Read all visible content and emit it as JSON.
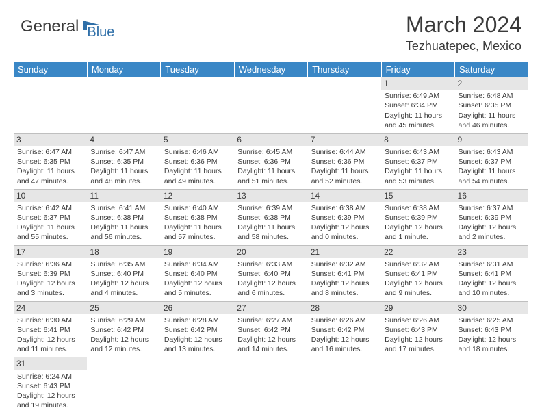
{
  "logo": {
    "general": "General",
    "blue": "Blue"
  },
  "title": "March 2024",
  "location": "Tezhuatepec, Mexico",
  "header_bg": "#3a87c6",
  "daynum_bg": "#e6e6e6",
  "text_color": "#3a3a3a",
  "day_names": [
    "Sunday",
    "Monday",
    "Tuesday",
    "Wednesday",
    "Thursday",
    "Friday",
    "Saturday"
  ],
  "weeks": [
    [
      null,
      null,
      null,
      null,
      null,
      {
        "n": "1",
        "sr": "Sunrise: 6:49 AM",
        "ss": "Sunset: 6:34 PM",
        "d1": "Daylight: 11 hours",
        "d2": "and 45 minutes."
      },
      {
        "n": "2",
        "sr": "Sunrise: 6:48 AM",
        "ss": "Sunset: 6:35 PM",
        "d1": "Daylight: 11 hours",
        "d2": "and 46 minutes."
      }
    ],
    [
      {
        "n": "3",
        "sr": "Sunrise: 6:47 AM",
        "ss": "Sunset: 6:35 PM",
        "d1": "Daylight: 11 hours",
        "d2": "and 47 minutes."
      },
      {
        "n": "4",
        "sr": "Sunrise: 6:47 AM",
        "ss": "Sunset: 6:35 PM",
        "d1": "Daylight: 11 hours",
        "d2": "and 48 minutes."
      },
      {
        "n": "5",
        "sr": "Sunrise: 6:46 AM",
        "ss": "Sunset: 6:36 PM",
        "d1": "Daylight: 11 hours",
        "d2": "and 49 minutes."
      },
      {
        "n": "6",
        "sr": "Sunrise: 6:45 AM",
        "ss": "Sunset: 6:36 PM",
        "d1": "Daylight: 11 hours",
        "d2": "and 51 minutes."
      },
      {
        "n": "7",
        "sr": "Sunrise: 6:44 AM",
        "ss": "Sunset: 6:36 PM",
        "d1": "Daylight: 11 hours",
        "d2": "and 52 minutes."
      },
      {
        "n": "8",
        "sr": "Sunrise: 6:43 AM",
        "ss": "Sunset: 6:37 PM",
        "d1": "Daylight: 11 hours",
        "d2": "and 53 minutes."
      },
      {
        "n": "9",
        "sr": "Sunrise: 6:43 AM",
        "ss": "Sunset: 6:37 PM",
        "d1": "Daylight: 11 hours",
        "d2": "and 54 minutes."
      }
    ],
    [
      {
        "n": "10",
        "sr": "Sunrise: 6:42 AM",
        "ss": "Sunset: 6:37 PM",
        "d1": "Daylight: 11 hours",
        "d2": "and 55 minutes."
      },
      {
        "n": "11",
        "sr": "Sunrise: 6:41 AM",
        "ss": "Sunset: 6:38 PM",
        "d1": "Daylight: 11 hours",
        "d2": "and 56 minutes."
      },
      {
        "n": "12",
        "sr": "Sunrise: 6:40 AM",
        "ss": "Sunset: 6:38 PM",
        "d1": "Daylight: 11 hours",
        "d2": "and 57 minutes."
      },
      {
        "n": "13",
        "sr": "Sunrise: 6:39 AM",
        "ss": "Sunset: 6:38 PM",
        "d1": "Daylight: 11 hours",
        "d2": "and 58 minutes."
      },
      {
        "n": "14",
        "sr": "Sunrise: 6:38 AM",
        "ss": "Sunset: 6:39 PM",
        "d1": "Daylight: 12 hours",
        "d2": "and 0 minutes."
      },
      {
        "n": "15",
        "sr": "Sunrise: 6:38 AM",
        "ss": "Sunset: 6:39 PM",
        "d1": "Daylight: 12 hours",
        "d2": "and 1 minute."
      },
      {
        "n": "16",
        "sr": "Sunrise: 6:37 AM",
        "ss": "Sunset: 6:39 PM",
        "d1": "Daylight: 12 hours",
        "d2": "and 2 minutes."
      }
    ],
    [
      {
        "n": "17",
        "sr": "Sunrise: 6:36 AM",
        "ss": "Sunset: 6:39 PM",
        "d1": "Daylight: 12 hours",
        "d2": "and 3 minutes."
      },
      {
        "n": "18",
        "sr": "Sunrise: 6:35 AM",
        "ss": "Sunset: 6:40 PM",
        "d1": "Daylight: 12 hours",
        "d2": "and 4 minutes."
      },
      {
        "n": "19",
        "sr": "Sunrise: 6:34 AM",
        "ss": "Sunset: 6:40 PM",
        "d1": "Daylight: 12 hours",
        "d2": "and 5 minutes."
      },
      {
        "n": "20",
        "sr": "Sunrise: 6:33 AM",
        "ss": "Sunset: 6:40 PM",
        "d1": "Daylight: 12 hours",
        "d2": "and 6 minutes."
      },
      {
        "n": "21",
        "sr": "Sunrise: 6:32 AM",
        "ss": "Sunset: 6:41 PM",
        "d1": "Daylight: 12 hours",
        "d2": "and 8 minutes."
      },
      {
        "n": "22",
        "sr": "Sunrise: 6:32 AM",
        "ss": "Sunset: 6:41 PM",
        "d1": "Daylight: 12 hours",
        "d2": "and 9 minutes."
      },
      {
        "n": "23",
        "sr": "Sunrise: 6:31 AM",
        "ss": "Sunset: 6:41 PM",
        "d1": "Daylight: 12 hours",
        "d2": "and 10 minutes."
      }
    ],
    [
      {
        "n": "24",
        "sr": "Sunrise: 6:30 AM",
        "ss": "Sunset: 6:41 PM",
        "d1": "Daylight: 12 hours",
        "d2": "and 11 minutes."
      },
      {
        "n": "25",
        "sr": "Sunrise: 6:29 AM",
        "ss": "Sunset: 6:42 PM",
        "d1": "Daylight: 12 hours",
        "d2": "and 12 minutes."
      },
      {
        "n": "26",
        "sr": "Sunrise: 6:28 AM",
        "ss": "Sunset: 6:42 PM",
        "d1": "Daylight: 12 hours",
        "d2": "and 13 minutes."
      },
      {
        "n": "27",
        "sr": "Sunrise: 6:27 AM",
        "ss": "Sunset: 6:42 PM",
        "d1": "Daylight: 12 hours",
        "d2": "and 14 minutes."
      },
      {
        "n": "28",
        "sr": "Sunrise: 6:26 AM",
        "ss": "Sunset: 6:42 PM",
        "d1": "Daylight: 12 hours",
        "d2": "and 16 minutes."
      },
      {
        "n": "29",
        "sr": "Sunrise: 6:26 AM",
        "ss": "Sunset: 6:43 PM",
        "d1": "Daylight: 12 hours",
        "d2": "and 17 minutes."
      },
      {
        "n": "30",
        "sr": "Sunrise: 6:25 AM",
        "ss": "Sunset: 6:43 PM",
        "d1": "Daylight: 12 hours",
        "d2": "and 18 minutes."
      }
    ],
    [
      {
        "n": "31",
        "sr": "Sunrise: 6:24 AM",
        "ss": "Sunset: 6:43 PM",
        "d1": "Daylight: 12 hours",
        "d2": "and 19 minutes."
      },
      null,
      null,
      null,
      null,
      null,
      null
    ]
  ]
}
